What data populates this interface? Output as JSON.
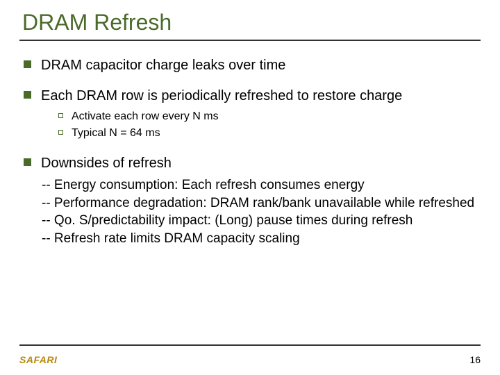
{
  "title": "DRAM Refresh",
  "colors": {
    "accent": "#4a6a2a",
    "text": "#000000",
    "rule": "#333333",
    "logo": "#b8860b",
    "background": "#ffffff"
  },
  "typography": {
    "title_fontsize": 32,
    "level1_fontsize": 20,
    "level2_fontsize": 16,
    "downside_fontsize": 19,
    "footer_fontsize": 14
  },
  "bullets": [
    {
      "text": "DRAM capacitor charge leaks over time"
    },
    {
      "text": "Each DRAM row is periodically refreshed to restore charge",
      "sub": [
        {
          "text": "Activate each row every N ms"
        },
        {
          "text": "Typical N = 64 ms"
        }
      ]
    },
    {
      "text": "Downsides of refresh"
    }
  ],
  "downsides": [
    "-- Energy consumption: Each refresh consumes energy",
    "-- Performance degradation: DRAM rank/bank unavailable while refreshed",
    "-- Qo. S/predictability impact: (Long) pause times during refresh",
    "-- Refresh rate limits DRAM capacity scaling"
  ],
  "footer": {
    "logo": "SAFARI",
    "page": "16"
  }
}
